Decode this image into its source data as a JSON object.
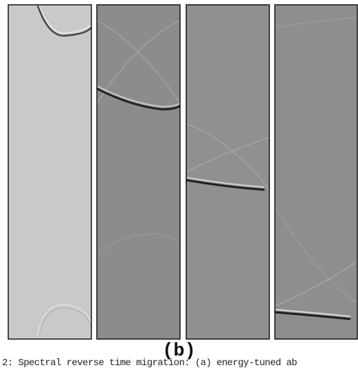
{
  "figure": {
    "label": "(b)",
    "caption": "2: Spectral reverse time migration: (a) energy-tuned ab"
  }
}
